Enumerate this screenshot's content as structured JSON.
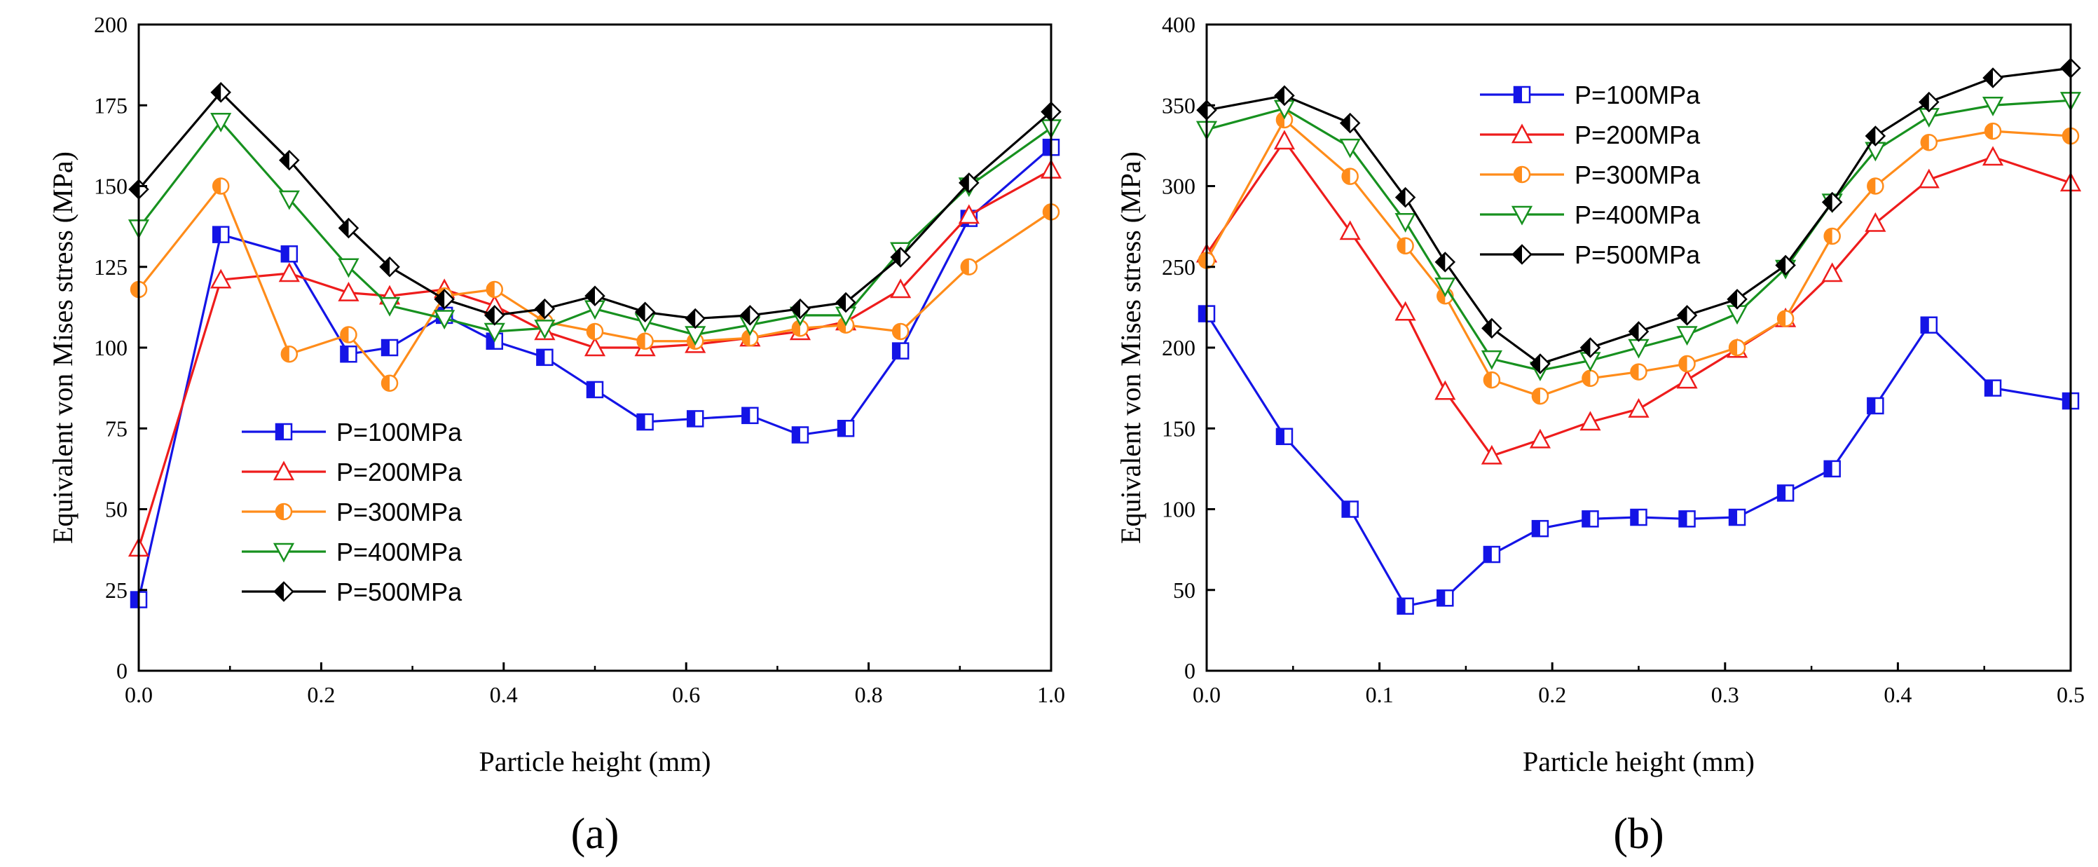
{
  "chart_data": [
    {
      "id": "a",
      "type": "line",
      "panel_label": "(a)",
      "xlabel": "Particle height (mm)",
      "ylabel": "Equivalent von Mises stress (MPa)",
      "xlim": [
        0,
        1.0
      ],
      "ylim": [
        0,
        200
      ],
      "xticks": [
        "0.0",
        "0.2",
        "0.4",
        "0.6",
        "0.8",
        "1.0"
      ],
      "xtick_values": [
        0,
        0.2,
        0.4,
        0.6,
        0.8,
        1.0
      ],
      "yticks": [
        "0",
        "25",
        "50",
        "75",
        "100",
        "125",
        "150",
        "175",
        "200"
      ],
      "ytick_values": [
        0,
        25,
        50,
        75,
        100,
        125,
        150,
        175,
        200
      ],
      "legend_position": "lower-left-center",
      "x": [
        0,
        0.09,
        0.165,
        0.23,
        0.275,
        0.335,
        0.39,
        0.445,
        0.5,
        0.555,
        0.61,
        0.67,
        0.725,
        0.775,
        0.835,
        0.91,
        1.0
      ],
      "series": [
        {
          "name": "P=100MPa",
          "color": "#1414e6",
          "marker": "square",
          "values": [
            22,
            135,
            129,
            98,
            100,
            110,
            102,
            97,
            87,
            77,
            78,
            79,
            73,
            75,
            99,
            140,
            162
          ]
        },
        {
          "name": "P=200MPa",
          "color": "#ee1c1c",
          "marker": "triangle-up",
          "values": [
            38,
            121,
            123,
            117,
            116,
            118,
            113,
            105,
            100,
            100,
            101,
            103,
            105,
            108,
            118,
            141,
            155
          ]
        },
        {
          "name": "P=300MPa",
          "color": "#ff8c1a",
          "marker": "circle-half",
          "values": [
            118,
            150,
            98,
            104,
            89,
            116,
            118,
            108,
            105,
            102,
            102,
            103,
            106,
            107,
            105,
            125,
            142
          ]
        },
        {
          "name": "P=400MPa",
          "color": "#17911f",
          "marker": "triangle-down",
          "values": [
            137,
            170,
            146,
            125,
            113,
            109,
            105,
            106,
            112,
            108,
            104,
            107,
            110,
            110,
            130,
            150,
            168
          ]
        },
        {
          "name": "P=500MPa",
          "color": "#000000",
          "marker": "diamond",
          "values": [
            149,
            179,
            158,
            137,
            125,
            115,
            110,
            112,
            116,
            111,
            109,
            110,
            112,
            114,
            128,
            151,
            173
          ]
        }
      ]
    },
    {
      "id": "b",
      "type": "line",
      "panel_label": "(b)",
      "xlabel": "Particle height (mm)",
      "ylabel": "Equivalent von Mises stress (MPa)",
      "xlim": [
        0,
        0.5
      ],
      "ylim": [
        0,
        400
      ],
      "xticks": [
        "0.0",
        "0.1",
        "0.2",
        "0.3",
        "0.4",
        "0.5"
      ],
      "xtick_values": [
        0,
        0.1,
        0.2,
        0.3,
        0.4,
        0.5
      ],
      "yticks": [
        "0",
        "50",
        "100",
        "150",
        "200",
        "250",
        "300",
        "350",
        "400"
      ],
      "ytick_values": [
        0,
        50,
        100,
        150,
        200,
        250,
        300,
        350,
        400
      ],
      "legend_position": "top-left-center",
      "x": [
        0,
        0.045,
        0.083,
        0.115,
        0.138,
        0.165,
        0.193,
        0.222,
        0.25,
        0.278,
        0.307,
        0.335,
        0.362,
        0.387,
        0.418,
        0.455,
        0.5
      ],
      "series": [
        {
          "name": "P=100MPa",
          "color": "#1414e6",
          "marker": "square",
          "values": [
            221,
            145,
            100,
            40,
            45,
            72,
            88,
            94,
            95,
            94,
            95,
            110,
            125,
            164,
            214,
            175,
            167
          ]
        },
        {
          "name": "P=200MPa",
          "color": "#ee1c1c",
          "marker": "triangle-up",
          "values": [
            258,
            328,
            272,
            222,
            173,
            133,
            143,
            154,
            162,
            180,
            199,
            218,
            246,
            277,
            304,
            318,
            302
          ]
        },
        {
          "name": "P=300MPa",
          "color": "#ff8c1a",
          "marker": "circle-half",
          "values": [
            254,
            341,
            306,
            263,
            232,
            180,
            170,
            181,
            185,
            190,
            200,
            218,
            269,
            300,
            327,
            334,
            331
          ]
        },
        {
          "name": "P=400MPa",
          "color": "#17911f",
          "marker": "triangle-down",
          "values": [
            335,
            348,
            324,
            278,
            238,
            193,
            186,
            192,
            200,
            208,
            221,
            249,
            290,
            322,
            343,
            350,
            353
          ]
        },
        {
          "name": "P=500MPa",
          "color": "#000000",
          "marker": "diamond",
          "values": [
            347,
            356,
            339,
            293,
            253,
            212,
            190,
            200,
            210,
            220,
            230,
            251,
            290,
            331,
            352,
            367,
            373
          ]
        }
      ]
    }
  ]
}
